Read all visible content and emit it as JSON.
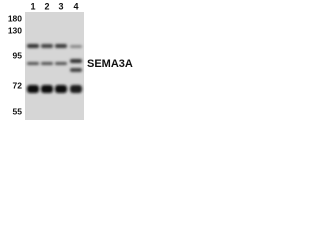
{
  "lanes": [
    "1",
    "2",
    "3",
    "4"
  ],
  "markers": [
    "180",
    "130",
    "95",
    "72",
    "55"
  ],
  "protein": "SEMA3A"
}
